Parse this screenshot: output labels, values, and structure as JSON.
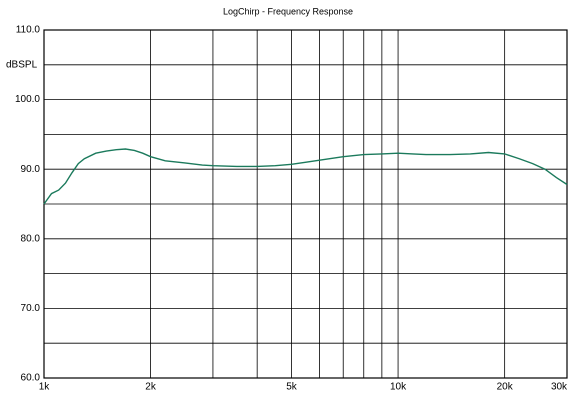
{
  "chart_data": {
    "type": "line",
    "title": "LogChirp - Frequency Response",
    "y_label": "dBSPL",
    "xscale": "log",
    "grid": true,
    "xlim": [
      1000,
      30000
    ],
    "ylim": [
      60,
      110
    ],
    "xticks": [
      {
        "value": 1000,
        "label": "1k"
      },
      {
        "value": 2000,
        "label": "2k"
      },
      {
        "value": 5000,
        "label": "5k"
      },
      {
        "value": 10000,
        "label": "10k"
      },
      {
        "value": 20000,
        "label": "20k"
      },
      {
        "value": 30000,
        "label": "30k"
      }
    ],
    "xminor": [
      3000,
      4000,
      6000,
      7000,
      8000,
      9000
    ],
    "yticks": [
      {
        "value": 60,
        "label": "60.0"
      },
      {
        "value": 70,
        "label": "70.0"
      },
      {
        "value": 80,
        "label": "80.0"
      },
      {
        "value": 90,
        "label": "90.0"
      },
      {
        "value": 100,
        "label": "100.0"
      },
      {
        "value": 110,
        "label": "110.0"
      }
    ],
    "yminor": [
      65,
      75,
      85,
      95,
      105
    ],
    "series": [
      {
        "color": "#1b7a5c",
        "x": [
          1000,
          1050,
          1100,
          1150,
          1200,
          1250,
          1300,
          1400,
          1500,
          1600,
          1700,
          1800,
          1900,
          2000,
          2200,
          2500,
          2800,
          3000,
          3500,
          4000,
          4500,
          5000,
          5500,
          6000,
          7000,
          8000,
          9000,
          10000,
          11000,
          12000,
          14000,
          16000,
          18000,
          20000,
          22000,
          24000,
          26000,
          28000,
          30000
        ],
        "values": [
          85,
          86.5,
          87,
          88,
          89.5,
          90.8,
          91.5,
          92.3,
          92.6,
          92.8,
          92.9,
          92.7,
          92.3,
          91.8,
          91.2,
          90.9,
          90.6,
          90.5,
          90.4,
          90.4,
          90.5,
          90.7,
          91.0,
          91.3,
          91.8,
          92.1,
          92.2,
          92.3,
          92.2,
          92.1,
          92.1,
          92.2,
          92.4,
          92.2,
          91.5,
          90.8,
          90.0,
          88.8,
          87.8
        ]
      }
    ]
  }
}
